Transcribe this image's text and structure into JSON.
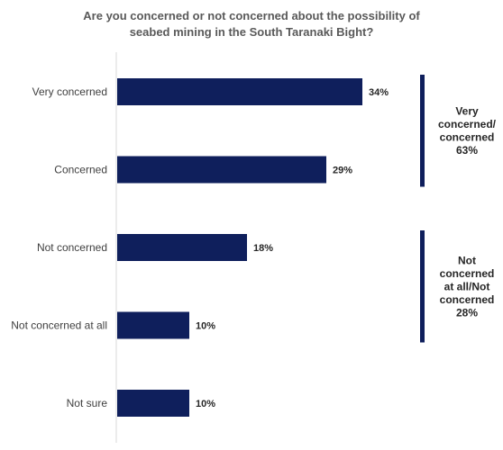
{
  "chart_data": {
    "type": "bar",
    "orientation": "horizontal",
    "title_lines": [
      "Are you concerned or not concerned about the possibility of",
      "seabed mining in the South Taranaki Bight?"
    ],
    "categories": [
      "Very concerned",
      "Concerned",
      "Not concerned",
      "Not concerned at all",
      "Not sure"
    ],
    "values": [
      34,
      29,
      18,
      10,
      10
    ],
    "value_labels": [
      "34%",
      "29%",
      "18%",
      "10%",
      "10%"
    ],
    "xlim": [
      0,
      40
    ],
    "grid": false,
    "bar_color": "#0f1f5c",
    "groups": [
      {
        "label_lines": [
          "Very",
          "concerned/",
          "concerned",
          "63%"
        ],
        "start": 0,
        "end": 1
      },
      {
        "label_lines": [
          "Not",
          "concerned",
          "at all/Not",
          "concerned",
          "28%"
        ],
        "start": 2,
        "end": 3
      }
    ]
  }
}
